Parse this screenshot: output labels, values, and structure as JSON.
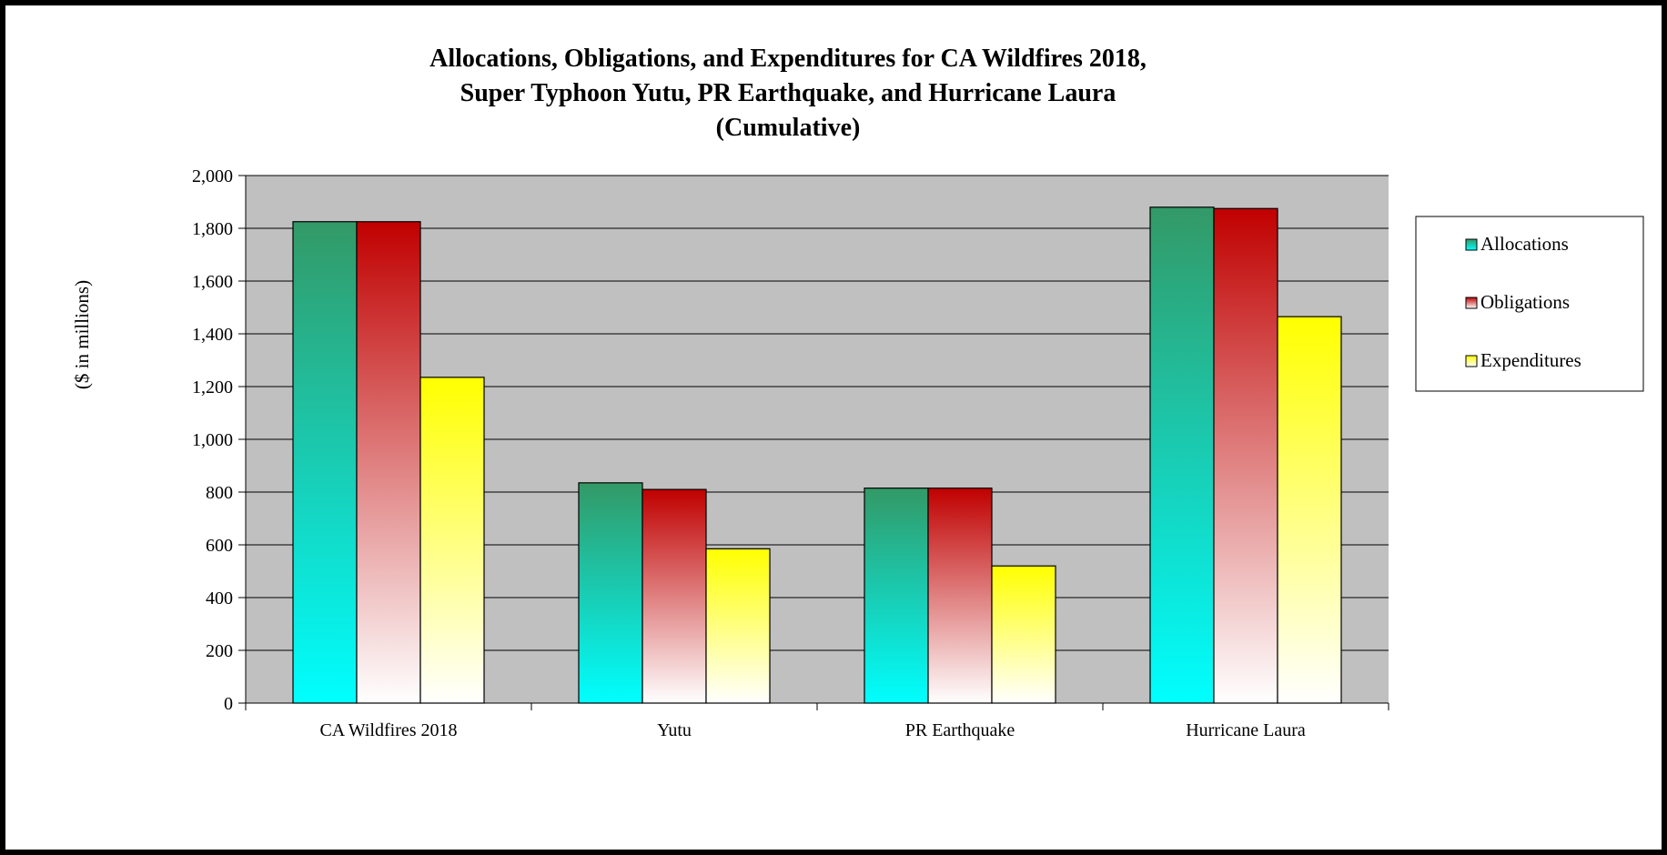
{
  "chart_data": {
    "type": "bar",
    "title_lines": [
      "Allocations, Obligations, and Expenditures for CA Wildfires 2018,",
      "Super Typhoon Yutu, PR Earthquake, and Hurricane Laura",
      "(Cumulative)"
    ],
    "xlabel": "",
    "ylabel": "($ in millions)",
    "ylim": [
      0,
      2000
    ],
    "yticks": [
      0,
      200,
      400,
      600,
      800,
      1000,
      1200,
      1400,
      1600,
      1800,
      2000
    ],
    "ytick_labels": [
      "0",
      "200",
      "400",
      "600",
      "800",
      "1,000",
      "1,200",
      "1,400",
      "1,600",
      "1,800",
      "2,000"
    ],
    "categories": [
      "CA Wildfires 2018",
      "Yutu",
      "PR Earthquake",
      "Hurricane Laura"
    ],
    "series": [
      {
        "name": "Allocations",
        "values": [
          1825,
          835,
          815,
          1880
        ],
        "colors": [
          "#339966",
          "#00ffff"
        ]
      },
      {
        "name": "Obligations",
        "values": [
          1825,
          810,
          815,
          1875
        ],
        "colors": [
          "#c00000",
          "#ffffff"
        ]
      },
      {
        "name": "Expenditures",
        "values": [
          1235,
          585,
          520,
          1465
        ],
        "colors": [
          "#ffff00",
          "#ffffff"
        ]
      }
    ],
    "grid": true,
    "plot_background": "#c0c0c0",
    "legend_position": "right"
  }
}
